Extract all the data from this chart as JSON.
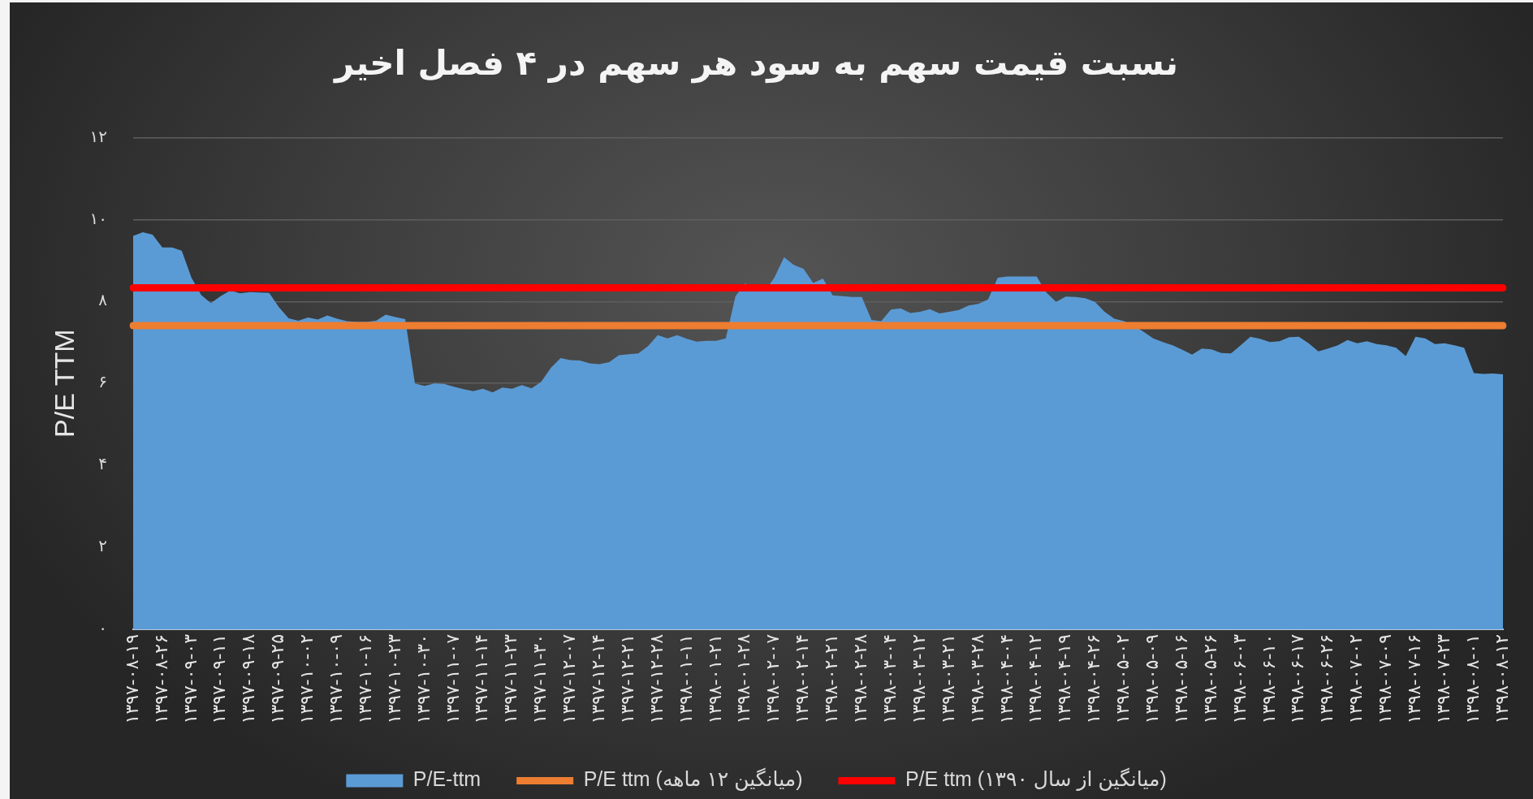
{
  "chart_data": {
    "type": "area",
    "title": "نسبت قیمت سهم به سود هر سهم در ۴ فصل اخیر",
    "ylabel": "P/E TTM",
    "categories": [
      "۱۳۹۷-۰۸-۱۹",
      null,
      null,
      "۱۳۹۷-۰۸-۲۶",
      null,
      null,
      "۱۳۹۷-۰۹-۰۳",
      null,
      null,
      "۱۳۹۷-۰۹-۱۱",
      null,
      null,
      "۱۳۹۷-۰۹-۱۸",
      null,
      null,
      "۱۳۹۷-۰۹-۲۵",
      null,
      null,
      "۱۳۹۷-۱۰-۰۲",
      null,
      null,
      "۱۳۹۷-۱۰-۰۹",
      null,
      null,
      "۱۳۹۷-۱۰-۱۶",
      null,
      null,
      "۱۳۹۷-۱۰-۲۳",
      null,
      null,
      "۱۳۹۷-۱۰-۳۰",
      null,
      null,
      "۱۳۹۷-۱۱-۰۷",
      null,
      null,
      "۱۳۹۷-۱۱-۱۴",
      null,
      null,
      "۱۳۹۷-۱۱-۲۳",
      null,
      null,
      "۱۳۹۷-۱۱-۳۰",
      null,
      null,
      "۱۳۹۷-۱۲-۰۷",
      null,
      null,
      "۱۳۹۷-۱۲-۱۴",
      null,
      null,
      "۱۳۹۷-۱۲-۲۱",
      null,
      null,
      "۱۳۹۷-۱۲-۲۸",
      null,
      null,
      "۱۳۹۸-۰۱-۱۱",
      null,
      null,
      "۱۳۹۸-۰۱-۲۱",
      null,
      null,
      "۱۳۹۸-۰۱-۲۸",
      null,
      null,
      "۱۳۹۸-۰۲-۰۷",
      null,
      null,
      "۱۳۹۸-۰۲-۱۴",
      null,
      null,
      "۱۳۹۸-۰۲-۲۱",
      null,
      null,
      "۱۳۹۸-۰۲-۲۸",
      null,
      null,
      "۱۳۹۸-۰۳-۰۴",
      null,
      null,
      "۱۳۹۸-۰۳-۱۲",
      null,
      null,
      "۱۳۹۸-۰۳-۲۱",
      null,
      null,
      "۱۳۹۸-۰۳-۲۸",
      null,
      null,
      "۱۳۹۸-۰۴-۰۴",
      null,
      null,
      "۱۳۹۸-۰۴-۱۲",
      null,
      null,
      "۱۳۹۸-۰۴-۱۹",
      null,
      null,
      "۱۳۹۸-۰۴-۲۶",
      null,
      null,
      "۱۳۹۸-۰۵-۰۲",
      null,
      null,
      "۱۳۹۸-۰۵-۰۹",
      null,
      null,
      "۱۳۹۸-۰۵-۱۶",
      null,
      null,
      "۱۳۹۸-۰۵-۲۶",
      null,
      null,
      "۱۳۹۸-۰۶-۰۳",
      null,
      null,
      "۱۳۹۸-۰۶-۱۰",
      null,
      null,
      "۱۳۹۸-۰۶-۱۷",
      null,
      null,
      "۱۳۹۸-۰۶-۲۶",
      null,
      null,
      "۱۳۹۸-۰۷-۰۲",
      null,
      null,
      "۱۳۹۸-۰۷-۰۹",
      null,
      null,
      "۱۳۹۸-۰۷-۱۶",
      null,
      null,
      "۱۳۹۸-۰۷-۲۳",
      null,
      null,
      "۱۳۹۸-۰۸-۰۱",
      null,
      null,
      "۱۳۹۸-۰۸-۱۲"
    ],
    "series": [
      {
        "name": "P/E-ttm",
        "type": "area",
        "color": "#5b9bd5",
        "values": [
          9.6,
          9.69,
          9.63,
          9.32,
          9.32,
          9.24,
          8.58,
          8.16,
          7.96,
          8.13,
          8.27,
          8.2,
          8.23,
          8.22,
          8.21,
          7.86,
          7.59,
          7.53,
          7.61,
          7.56,
          7.66,
          7.58,
          7.52,
          7.5,
          7.5,
          7.53,
          7.68,
          7.62,
          7.57,
          6,
          5.94,
          6,
          5.99,
          5.92,
          5.86,
          5.81,
          5.87,
          5.78,
          5.9,
          5.87,
          5.96,
          5.88,
          6.04,
          6.38,
          6.62,
          6.57,
          6.56,
          6.49,
          6.47,
          6.52,
          6.69,
          6.71,
          6.73,
          6.91,
          7.18,
          7.1,
          7.18,
          7.09,
          7.02,
          7.04,
          7.04,
          7.1,
          8.13,
          8.44,
          8.33,
          8.24,
          8.58,
          9.08,
          8.89,
          8.8,
          8.45,
          8.56,
          8.15,
          8.13,
          8.11,
          8.11,
          7.55,
          7.52,
          7.8,
          7.83,
          7.72,
          7.75,
          7.81,
          7.71,
          7.75,
          7.79,
          7.9,
          7.94,
          8.05,
          8.58,
          8.61,
          8.61,
          8.61,
          8.61,
          8.22,
          7.99,
          8.12,
          8.11,
          8.08,
          7.99,
          7.75,
          7.58,
          7.52,
          7.41,
          7.26,
          7.1,
          7.01,
          6.93,
          6.82,
          6.7,
          6.85,
          6.83,
          6.74,
          6.73,
          6.93,
          7.14,
          7.09,
          7.01,
          7.03,
          7.13,
          7.14,
          6.98,
          6.78,
          6.85,
          6.93,
          7.06,
          6.98,
          7.03,
          6.96,
          6.93,
          6.87,
          6.67,
          7.14,
          7.1,
          6.96,
          6.98,
          6.93,
          6.87,
          6.25,
          6.23,
          6.24,
          6.22
        ]
      },
      {
        "name": "P/E ttm (میانگین ۱۲ ماهه)",
        "type": "line",
        "color": "#ed7d31",
        "values": [
          7.41,
          7.41,
          7.41,
          7.41,
          7.41,
          7.41,
          7.41,
          7.41,
          7.41,
          7.41,
          7.41,
          7.41,
          7.41,
          7.41,
          7.41,
          7.41,
          7.41,
          7.41,
          7.41,
          7.41,
          7.41,
          7.41,
          7.41,
          7.41,
          7.41,
          7.41,
          7.41,
          7.41,
          7.41,
          7.41,
          7.41,
          7.41,
          7.41,
          7.41,
          7.41,
          7.41,
          7.41,
          7.41,
          7.41,
          7.41,
          7.41,
          7.41,
          7.41,
          7.41,
          7.41,
          7.41,
          7.41,
          7.41,
          7.41,
          7.41,
          7.41,
          7.41,
          7.41,
          7.41,
          7.41,
          7.41,
          7.41,
          7.41,
          7.41,
          7.41,
          7.41,
          7.41,
          7.41,
          7.41,
          7.41,
          7.41,
          7.41,
          7.41,
          7.41,
          7.41,
          7.41,
          7.41,
          7.41,
          7.41,
          7.41,
          7.41,
          7.41,
          7.41,
          7.41,
          7.41,
          7.41,
          7.41,
          7.41,
          7.41,
          7.41,
          7.41,
          7.41,
          7.41,
          7.41,
          7.41,
          7.41,
          7.41,
          7.41,
          7.41,
          7.41,
          7.41,
          7.41,
          7.41,
          7.41,
          7.41,
          7.41,
          7.41,
          7.41,
          7.41,
          7.41,
          7.41,
          7.41,
          7.41,
          7.41,
          7.41,
          7.41,
          7.41,
          7.41,
          7.41,
          7.41,
          7.41,
          7.41,
          7.41,
          7.41,
          7.41,
          7.41,
          7.41,
          7.41,
          7.41,
          7.41,
          7.41,
          7.41,
          7.41,
          7.41,
          7.41,
          7.41,
          7.41,
          7.41,
          7.41,
          7.41,
          7.41,
          7.41,
          7.41,
          7.41,
          7.41,
          7.41,
          7.41
        ]
      },
      {
        "name": "P/E ttm (میانگین از سال ۱۳۹۰)",
        "type": "line",
        "color": "#ff0000",
        "values": [
          8.33,
          8.33,
          8.33,
          8.33,
          8.33,
          8.33,
          8.33,
          8.33,
          8.33,
          8.33,
          8.33,
          8.33,
          8.33,
          8.33,
          8.33,
          8.33,
          8.33,
          8.33,
          8.33,
          8.33,
          8.33,
          8.33,
          8.33,
          8.33,
          8.33,
          8.33,
          8.33,
          8.33,
          8.33,
          8.33,
          8.33,
          8.33,
          8.33,
          8.33,
          8.33,
          8.33,
          8.33,
          8.33,
          8.33,
          8.33,
          8.33,
          8.33,
          8.33,
          8.33,
          8.33,
          8.33,
          8.33,
          8.33,
          8.33,
          8.33,
          8.33,
          8.33,
          8.33,
          8.33,
          8.33,
          8.33,
          8.33,
          8.33,
          8.33,
          8.33,
          8.33,
          8.33,
          8.33,
          8.33,
          8.33,
          8.33,
          8.33,
          8.33,
          8.33,
          8.33,
          8.33,
          8.33,
          8.33,
          8.33,
          8.33,
          8.33,
          8.33,
          8.33,
          8.33,
          8.33,
          8.33,
          8.33,
          8.33,
          8.33,
          8.33,
          8.33,
          8.33,
          8.33,
          8.33,
          8.33,
          8.33,
          8.33,
          8.33,
          8.33,
          8.33,
          8.33,
          8.33,
          8.33,
          8.33,
          8.33,
          8.33,
          8.33,
          8.33,
          8.33,
          8.33,
          8.33,
          8.33,
          8.33,
          8.33,
          8.33,
          8.33,
          8.33,
          8.33,
          8.33,
          8.33,
          8.33,
          8.33,
          8.33,
          8.33,
          8.33,
          8.33,
          8.33,
          8.33,
          8.33,
          8.33,
          8.33,
          8.33,
          8.33,
          8.33,
          8.33,
          8.33,
          8.33,
          8.33,
          8.33,
          8.33,
          8.33,
          8.33,
          8.33,
          8.33,
          8.33,
          8.33,
          8.33
        ]
      }
    ],
    "ylim": [
      0,
      12
    ],
    "yticks": [
      {
        "value": 0,
        "label": "۰"
      },
      {
        "value": 2,
        "label": "۲"
      },
      {
        "value": 4,
        "label": "۴"
      },
      {
        "value": 6,
        "label": "۶"
      },
      {
        "value": 8,
        "label": "۸"
      },
      {
        "value": 10,
        "label": "۱۰"
      },
      {
        "value": 12,
        "label": "۱۲"
      }
    ],
    "grid": "y",
    "legend": "bottom",
    "marker": "none"
  }
}
